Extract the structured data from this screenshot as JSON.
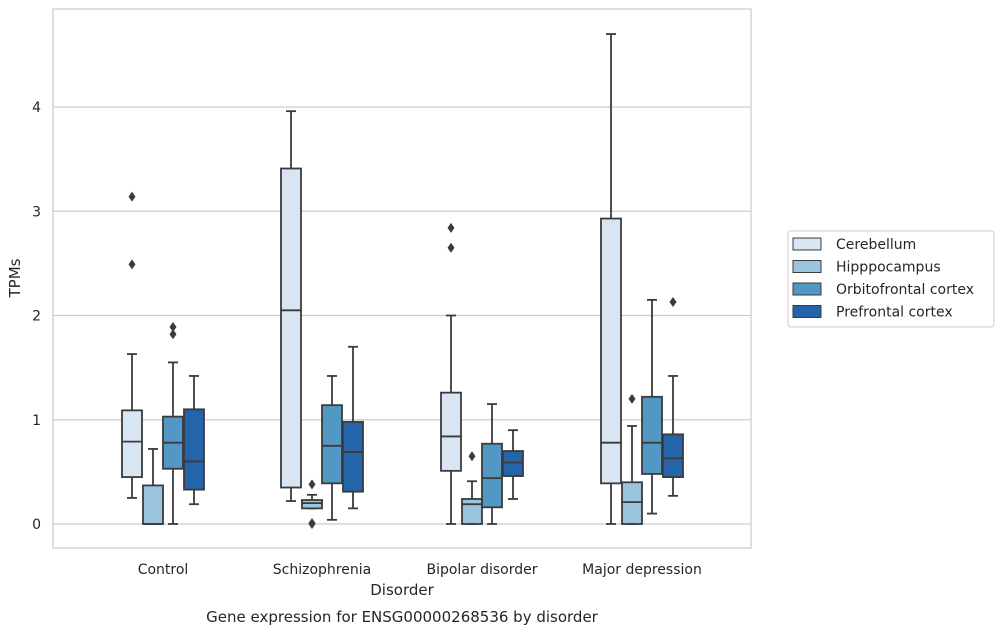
{
  "chart_data": {
    "type": "boxplot",
    "xlabel": "Disorder",
    "ylabel": "TPMs",
    "caption": "Gene expression for ENSG00000268536 by disorder",
    "ylim": [
      -0.23,
      4.95
    ],
    "yticks": [
      "0",
      "1",
      "2",
      "3",
      "4"
    ],
    "grid": "horizontal",
    "legend_position": "right",
    "categories": [
      "Control",
      "Schizophrenia",
      "Bipolar disorder",
      "Major depression"
    ],
    "series": [
      {
        "name": "Cerebellum",
        "color": "#d8e5f2",
        "boxes": [
          {
            "whislo": 0.25,
            "q1": 0.45,
            "med": 0.79,
            "q3": 1.09,
            "whishi": 1.63,
            "fliers": [
              2.49,
              3.14
            ]
          },
          {
            "whislo": 0.22,
            "q1": 0.35,
            "med": 2.05,
            "q3": 3.41,
            "whishi": 3.96,
            "fliers": []
          },
          {
            "whislo": 0.0,
            "q1": 0.51,
            "med": 0.84,
            "q3": 1.26,
            "whishi": 2.0,
            "fliers": [
              2.65,
              2.84
            ]
          },
          {
            "whislo": 0.0,
            "q1": 0.39,
            "med": 0.78,
            "q3": 2.93,
            "whishi": 4.7,
            "fliers": []
          }
        ]
      },
      {
        "name": "Hipppocampus",
        "color": "#9dc4de",
        "boxes": [
          {
            "whislo": 0.0,
            "q1": 0.0,
            "med": 0.0,
            "q3": 0.37,
            "whishi": 0.72,
            "fliers": []
          },
          {
            "whislo": 0.15,
            "q1": 0.15,
            "med": 0.2,
            "q3": 0.23,
            "whishi": 0.28,
            "fliers": [
              0.0,
              0.01,
              0.38
            ]
          },
          {
            "whislo": 0.0,
            "q1": 0.0,
            "med": 0.19,
            "q3": 0.24,
            "whishi": 0.41,
            "fliers": [
              0.65
            ]
          },
          {
            "whislo": 0.0,
            "q1": 0.0,
            "med": 0.21,
            "q3": 0.4,
            "whishi": 0.94,
            "fliers": [
              1.2
            ]
          }
        ]
      },
      {
        "name": "Orbitofrontal cortex",
        "color": "#5397c5",
        "boxes": [
          {
            "whislo": 0.0,
            "q1": 0.53,
            "med": 0.78,
            "q3": 1.03,
            "whishi": 1.55,
            "fliers": [
              1.82,
              1.89
            ]
          },
          {
            "whislo": 0.04,
            "q1": 0.39,
            "med": 0.75,
            "q3": 1.14,
            "whishi": 1.42,
            "fliers": []
          },
          {
            "whislo": 0.0,
            "q1": 0.16,
            "med": 0.44,
            "q3": 0.77,
            "whishi": 1.15,
            "fliers": []
          },
          {
            "whislo": 0.1,
            "q1": 0.48,
            "med": 0.78,
            "q3": 1.22,
            "whishi": 2.15,
            "fliers": []
          }
        ]
      },
      {
        "name": "Prefrontal cortex",
        "color": "#2464a8",
        "boxes": [
          {
            "whislo": 0.19,
            "q1": 0.33,
            "med": 0.6,
            "q3": 1.1,
            "whishi": 1.42,
            "fliers": []
          },
          {
            "whislo": 0.15,
            "q1": 0.31,
            "med": 0.69,
            "q3": 0.98,
            "whishi": 1.7,
            "fliers": []
          },
          {
            "whislo": 0.24,
            "q1": 0.46,
            "med": 0.59,
            "q3": 0.7,
            "whishi": 0.9,
            "fliers": []
          },
          {
            "whislo": 0.27,
            "q1": 0.45,
            "med": 0.63,
            "q3": 0.86,
            "whishi": 1.42,
            "fliers": [
              2.13
            ]
          }
        ]
      }
    ]
  }
}
